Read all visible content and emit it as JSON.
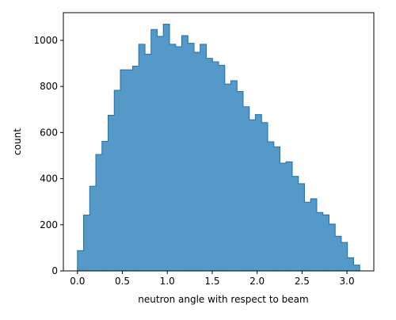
{
  "chart_data": {
    "type": "bar",
    "style": "histogram-step-filled",
    "xlabel": "neutron angle with respect to beam",
    "ylabel": "count",
    "xlim": [
      -0.157,
      3.299
    ],
    "ylim": [
      0,
      1120
    ],
    "x_ticks": [
      0.0,
      0.5,
      1.0,
      1.5,
      2.0,
      2.5,
      3.0
    ],
    "x_tick_labels": [
      "0.0",
      "0.5",
      "1.0",
      "1.5",
      "2.0",
      "2.5",
      "3.0"
    ],
    "y_ticks": [
      0,
      200,
      400,
      600,
      800,
      1000
    ],
    "y_tick_labels": [
      "0",
      "200",
      "400",
      "600",
      "800",
      "1000"
    ],
    "grid": false,
    "legend": "none",
    "bin_range": [
      0.0,
      3.1416
    ],
    "values": [
      88,
      242,
      367,
      505,
      562,
      675,
      783,
      872,
      872,
      888,
      983,
      940,
      1047,
      1017,
      1070,
      983,
      972,
      1020,
      987,
      948,
      983,
      922,
      907,
      892,
      810,
      825,
      778,
      712,
      655,
      678,
      643,
      560,
      538,
      467,
      473,
      410,
      378,
      298,
      313,
      253,
      243,
      203,
      150,
      123,
      57,
      25
    ],
    "colors": {
      "fill": "#5599c8",
      "edge": "#1f77b4"
    }
  }
}
